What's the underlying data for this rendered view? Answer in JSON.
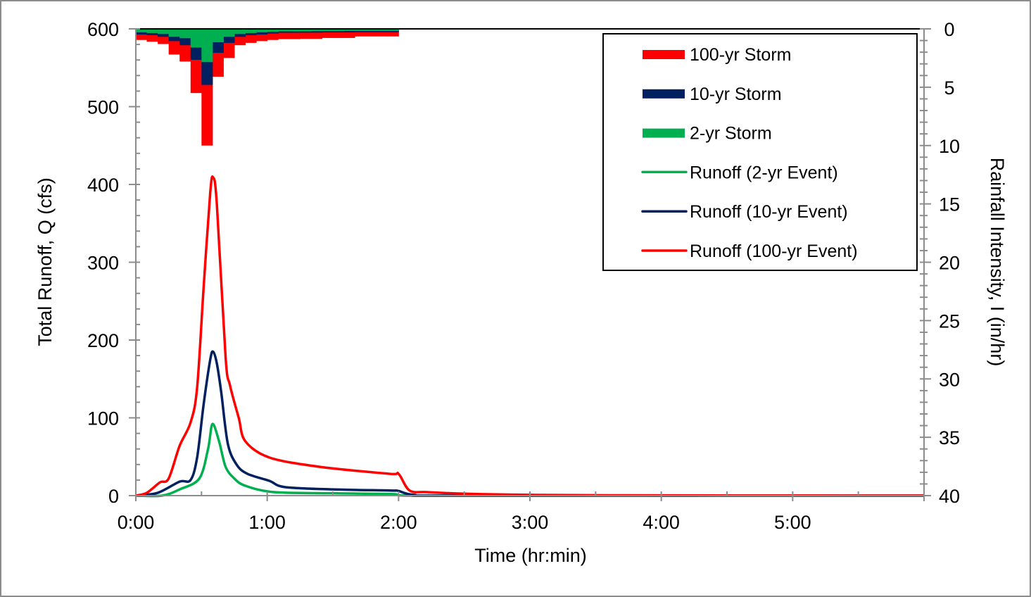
{
  "chart_data": {
    "type": "line",
    "title": "",
    "xlabel": "Time  (hr:min)",
    "ylabel": "Total Runoff, Q (cfs)",
    "y2label": "Rainfall Intensity, I (in/hr)",
    "xlim_minutes": [
      0,
      360
    ],
    "ylim": [
      0,
      600
    ],
    "y2lim": [
      0,
      40
    ],
    "y2_inverted": true,
    "grid": false,
    "legend_position": "top-right",
    "xticks": [
      "0:00",
      "1:00",
      "2:00",
      "3:00",
      "4:00",
      "5:00"
    ],
    "xtick_minutes": [
      0,
      60,
      120,
      180,
      240,
      300
    ],
    "yticks": [
      0,
      100,
      200,
      300,
      400,
      500,
      600
    ],
    "y2ticks": [
      0,
      5,
      10,
      15,
      20,
      25,
      30,
      35,
      40
    ],
    "rainfall_interval_minutes": 5,
    "rainfall_series": [
      {
        "name": "100-yr Storm",
        "color": "#ff0000",
        "values": [
          0.95,
          1.1,
          1.3,
          2.2,
          2.8,
          5.5,
          10.0,
          4.1,
          2.5,
          1.4,
          1.2,
          1.05,
          0.95,
          0.88,
          0.88,
          0.86,
          0.86,
          0.78,
          0.78,
          0.78,
          0.65,
          0.65,
          0.65,
          0.65
        ]
      },
      {
        "name": "10-yr Storm",
        "color": "#002060",
        "values": [
          0.48,
          0.54,
          0.68,
          1.05,
          1.4,
          2.65,
          4.8,
          2.05,
          1.2,
          0.68,
          0.54,
          0.48,
          0.4,
          0.33,
          0.33,
          0.32,
          0.32,
          0.3,
          0.3,
          0.3,
          0.28,
          0.28,
          0.28,
          0.28
        ]
      },
      {
        "name": "2-yr Storm",
        "color": "#00b050",
        "values": [
          0.3,
          0.36,
          0.44,
          0.68,
          0.8,
          1.6,
          2.85,
          1.15,
          0.68,
          0.44,
          0.36,
          0.3,
          0.26,
          0.22,
          0.22,
          0.22,
          0.2,
          0.2,
          0.2,
          0.18,
          0.18,
          0.18,
          0.18,
          0.18
        ]
      }
    ],
    "runoff_series": [
      {
        "name": "Runoff (2-yr Event)",
        "color": "#00b050",
        "x": [
          0,
          12,
          20,
          29,
          33,
          35,
          38,
          41,
          45,
          50,
          63,
          90,
          117,
          125,
          180,
          360
        ],
        "y": [
          0,
          0,
          8,
          22,
          60,
          92,
          70,
          37,
          22,
          12.7,
          4.5,
          3,
          2,
          0,
          0,
          0
        ]
      },
      {
        "name": "Runoff (10-yr Event)",
        "color": "#002060",
        "x": [
          0,
          10,
          20,
          25,
          28,
          31,
          34,
          35.3,
          37,
          39,
          42,
          46,
          51,
          61,
          68,
          90,
          116,
          120,
          127,
          150,
          360
        ],
        "y": [
          0,
          3.6,
          18,
          20,
          49,
          118,
          175,
          185,
          170,
          133,
          67,
          40,
          28,
          19,
          11,
          8,
          6.6,
          6,
          1,
          0,
          0
        ]
      },
      {
        "name": "Runoff (100-yr Event)",
        "color": "#ff0000",
        "x": [
          0,
          5,
          11,
          15,
          20,
          25,
          28,
          31,
          34,
          35.3,
          37,
          41,
          43,
          47,
          50,
          61,
          84,
          116,
          120,
          125,
          133,
          150,
          180,
          240,
          300,
          360
        ],
        "y": [
          0,
          3.6,
          17,
          22,
          64,
          94,
          139,
          269,
          390,
          409,
          375,
          178,
          142,
          100,
          70,
          49,
          37,
          28,
          28,
          6.6,
          4.5,
          2.5,
          1,
          0.3,
          0.1,
          0
        ]
      }
    ],
    "legend": [
      "100-yr Storm",
      "10-yr Storm",
      "2-yr Storm",
      "Runoff (2-yr Event)",
      "Runoff (10-yr Event)",
      "Runoff (100-yr Event)"
    ]
  }
}
